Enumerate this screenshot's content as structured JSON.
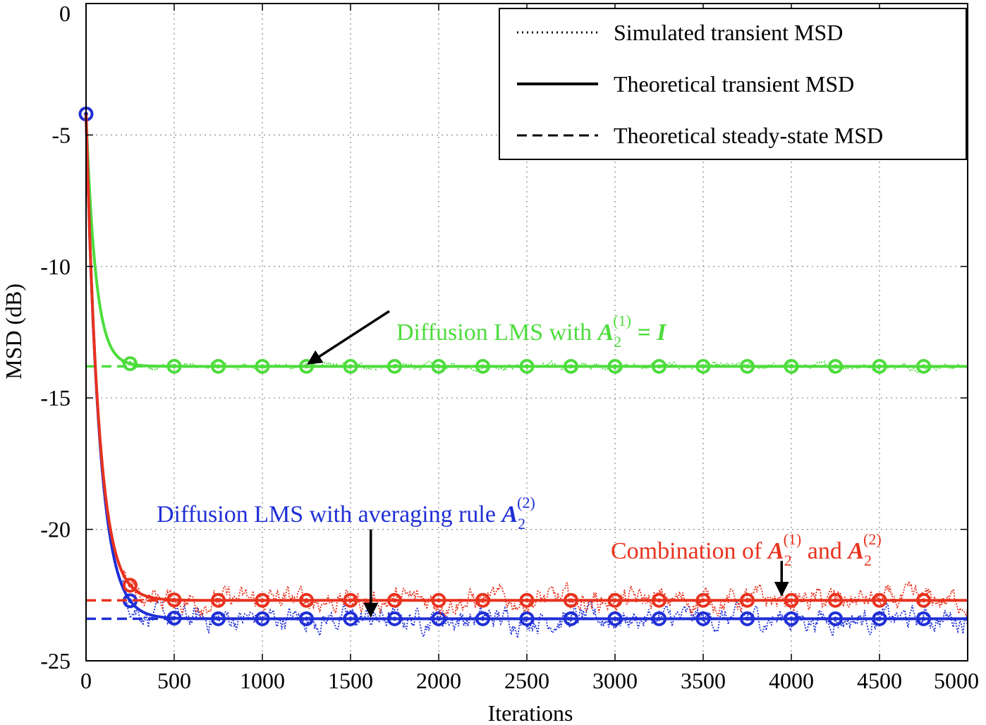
{
  "chart_data": {
    "type": "line",
    "xlabel": "Iterations",
    "ylabel": "MSD (dB)",
    "xlim": [
      0,
      5000
    ],
    "ylim": [
      -25,
      0
    ],
    "xticks": [
      "0",
      "500",
      "1000",
      "1500",
      "2000",
      "2500",
      "3000",
      "3500",
      "4000",
      "4500",
      "5000"
    ],
    "yticks": [
      "0",
      "-5",
      "-10",
      "-15",
      "-20",
      "-25"
    ],
    "grid": true,
    "legend": {
      "position": "top-right",
      "entries": [
        {
          "label": "Simulated transient MSD",
          "style": "dotted"
        },
        {
          "label": "Theoretical transient MSD",
          "style": "solid"
        },
        {
          "label": "Theoretical steady-state MSD",
          "style": "dashed"
        }
      ]
    },
    "series": [
      {
        "name": "green",
        "color": "#4ddc3c",
        "initial": -4.2,
        "steady": -13.8,
        "tau": 55,
        "markers": [
          250,
          500,
          750,
          1000,
          1250,
          1500,
          1750,
          2000,
          2250,
          2500,
          2750,
          3000,
          3250,
          3500,
          3750,
          4000,
          4250,
          4500,
          4750
        ]
      },
      {
        "name": "blue",
        "color": "#1f2fd6",
        "initial": -4.2,
        "steady": -23.4,
        "tau": 75,
        "markers": [
          0,
          250,
          500,
          750,
          1000,
          1250,
          1500,
          1750,
          2000,
          2250,
          2500,
          2750,
          3000,
          3250,
          3500,
          3750,
          4000,
          4250,
          4500,
          4750
        ]
      },
      {
        "name": "red",
        "color": "#e8321e",
        "initial": -4.2,
        "steady": -22.7,
        "tau": 72,
        "markers": [
          250,
          500,
          750,
          1000,
          1250,
          1500,
          1750,
          2000,
          2250,
          2500,
          2750,
          3000,
          3250,
          3500,
          3750,
          4000,
          4250,
          4500,
          4750
        ]
      }
    ],
    "annotations": [
      {
        "id": "green",
        "color": "#4ddc3c",
        "prefix": "Diffusion LMS with ",
        "math": "A",
        "sub": "2",
        "sup": "(1)",
        "suffix": " = I",
        "arrow_from": [
          1720,
          -11.7
        ],
        "arrow_to": [
          1260,
          -13.7
        ]
      },
      {
        "id": "blue",
        "color": "#1f2fd6",
        "prefix": "Diffusion LMS with averaging rule ",
        "math": "A",
        "sub": "2",
        "sup": "(2)",
        "suffix": "",
        "arrow_from": [
          1615,
          -20.0
        ],
        "arrow_to": [
          1615,
          -23.3
        ]
      },
      {
        "id": "red",
        "color": "#e8321e",
        "prefix": "Combination of ",
        "math": "A",
        "sub": "2",
        "sup": "(1)",
        "mid": " and ",
        "math2": "A",
        "sub2": "2",
        "sup2": "(2)",
        "arrow_from": [
          3945,
          -21.2
        ],
        "arrow_to": [
          3945,
          -22.5
        ]
      }
    ]
  }
}
